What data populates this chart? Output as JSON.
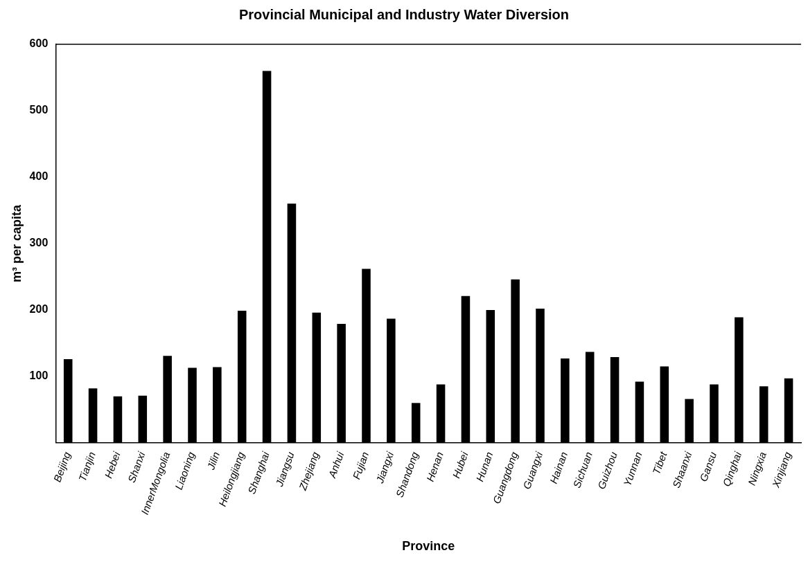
{
  "chart_data": {
    "type": "bar",
    "title": "Provincial Municipal and Industry Water Diversion",
    "xlabel": "Province",
    "ylabel": "m³ per capita",
    "categories": [
      "Beijing",
      "Tianjin",
      "Hebei",
      "Shanxi",
      "InnerMongolia",
      "Liaoning",
      "Jilin",
      "Heilongjiang",
      "Shanghai",
      "Jiangsu",
      "Zhejiang",
      "Anhui",
      "Fujian",
      "Jiangxi",
      "Shandong",
      "Henan",
      "Hubei",
      "Hunan",
      "Guangdong",
      "Guangxi",
      "Hainan",
      "Sichuan",
      "Guizhou",
      "Yunnan",
      "Tibet",
      "Shaanxi",
      "Gansu",
      "Qinghai",
      "Ningxia",
      "Xinjiang"
    ],
    "values": [
      126,
      82,
      70,
      71,
      131,
      113,
      114,
      199,
      560,
      360,
      196,
      179,
      262,
      187,
      60,
      88,
      221,
      200,
      246,
      202,
      127,
      137,
      129,
      92,
      115,
      66,
      88,
      189,
      85,
      97
    ],
    "color": "#000000",
    "ylim": [
      0,
      600
    ],
    "yticks": [
      100,
      200,
      300,
      400,
      500,
      600
    ],
    "grid": false,
    "legend": false
  }
}
